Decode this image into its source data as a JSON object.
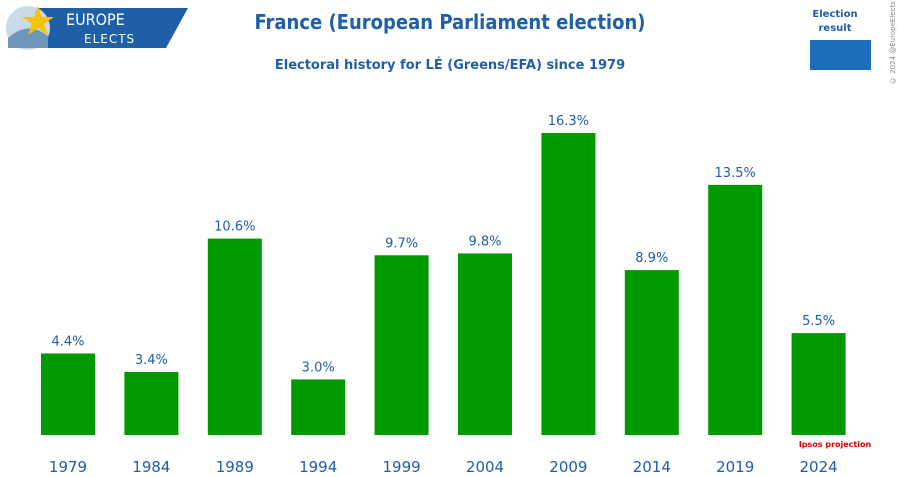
{
  "brand": {
    "line1": "EUROPE",
    "line2": "ELECTS"
  },
  "colors": {
    "brand_blue": "#1f5fa8",
    "bar_green": "#009900",
    "legend_swatch": "#1d6fbc",
    "note_red": "#e00000"
  },
  "legend": {
    "label_line1": "Election",
    "label_line2": "result"
  },
  "copyright": "© 2024 @EuropeElects",
  "note": "Ipsos projection",
  "chart_data": {
    "type": "bar",
    "title": "France (European Parliament election)",
    "subtitle": "Electoral history for LÉ (Greens/EFA) since 1979",
    "xlabel": "",
    "ylabel": "",
    "categories": [
      "1979",
      "1984",
      "1989",
      "1994",
      "1999",
      "2004",
      "2009",
      "2014",
      "2019",
      "2024"
    ],
    "values": [
      4.4,
      3.4,
      10.6,
      3.0,
      9.7,
      9.8,
      16.3,
      8.9,
      13.5,
      5.5
    ],
    "labels": [
      "4.4%",
      "3.4%",
      "10.6%",
      "3.0%",
      "9.7%",
      "9.8%",
      "16.3%",
      "8.9%",
      "13.5%",
      "5.5%"
    ],
    "ylim": [
      0,
      16.3
    ],
    "grid": false,
    "legend": "top-right"
  }
}
